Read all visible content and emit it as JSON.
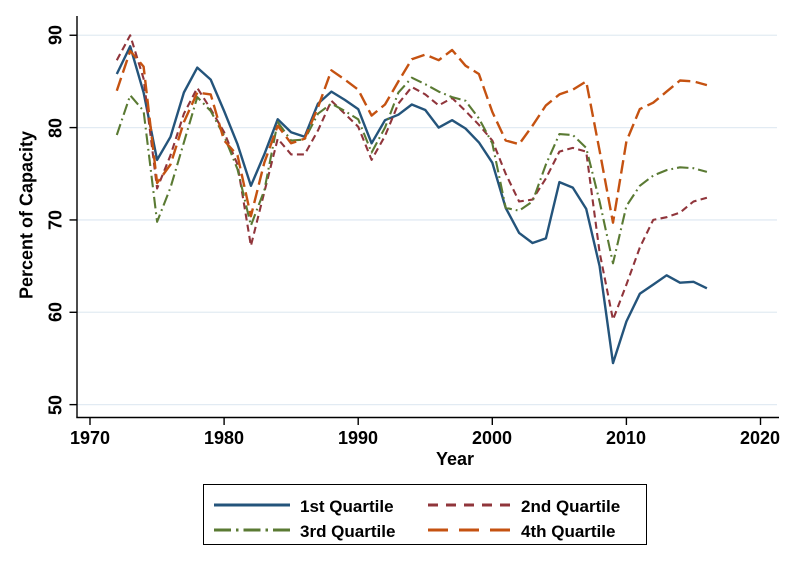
{
  "chart_data": {
    "type": "line",
    "title": "",
    "xlabel": "Year",
    "ylabel": "Percent of Capacity",
    "xticks": [
      "1970",
      "1980",
      "1990",
      "2000",
      "2010",
      "2020"
    ],
    "yticks": [
      "50",
      "60",
      "70",
      "80",
      "90"
    ],
    "xlim": [
      1969,
      2021.4
    ],
    "ylim": [
      48,
      92
    ],
    "grid": "horizontal",
    "grid_color": "#e2ebf3",
    "axis_color": "#000000",
    "legend_position": "bottom-center",
    "years": [
      1972,
      1973,
      1974,
      1975,
      1976,
      1977,
      1978,
      1979,
      1980,
      1981,
      1982,
      1983,
      1984,
      1985,
      1986,
      1987,
      1988,
      1989,
      1990,
      1991,
      1992,
      1993,
      1994,
      1995,
      1996,
      1997,
      1998,
      1999,
      2000,
      2001,
      2002,
      2003,
      2004,
      2005,
      2006,
      2007,
      2008,
      2009,
      2010,
      2011,
      2012,
      2013,
      2014,
      2015,
      2016
    ],
    "series": [
      {
        "name": "1st Quartile",
        "color": "#24547b",
        "pattern": "solid",
        "values": [
          85.8,
          88.8,
          83.8,
          76.5,
          79.0,
          83.8,
          86.5,
          85.2,
          81.8,
          78.2,
          73.7,
          77.1,
          80.9,
          79.5,
          79.0,
          82.6,
          83.9,
          83.0,
          82.0,
          78.3,
          80.8,
          81.4,
          82.5,
          81.9,
          80.0,
          80.8,
          79.9,
          78.4,
          76.2,
          71.3,
          68.6,
          67.5,
          68.0,
          74.1,
          73.5,
          71.2,
          65.0,
          54.5,
          59.0,
          62.0,
          63.0,
          64.0,
          63.2,
          63.3,
          62.6
        ]
      },
      {
        "name": "2nd Quartile",
        "color": "#90353b",
        "pattern": "dash",
        "values": [
          87.3,
          90.0,
          85.3,
          73.4,
          77.0,
          81.5,
          84.3,
          82.0,
          79.5,
          76.0,
          67.2,
          73.0,
          78.8,
          77.1,
          77.1,
          79.7,
          82.9,
          81.5,
          80.1,
          76.5,
          79.1,
          82.6,
          84.4,
          83.6,
          82.4,
          83.2,
          81.8,
          80.3,
          78.6,
          75.0,
          72.0,
          72.2,
          74.5,
          77.4,
          77.8,
          77.4,
          66.5,
          59.2,
          63.0,
          67.0,
          70.0,
          70.3,
          70.8,
          72.0,
          72.4
        ]
      },
      {
        "name": "3rd Quartile",
        "color": "#5a7a33",
        "pattern": "dash-dot",
        "values": [
          79.2,
          83.5,
          81.8,
          69.8,
          73.5,
          78.4,
          83.3,
          81.8,
          79.1,
          75.5,
          69.4,
          73.2,
          80.6,
          78.6,
          78.7,
          81.5,
          82.6,
          81.8,
          80.9,
          77.3,
          80.0,
          83.8,
          85.4,
          84.7,
          83.9,
          83.3,
          82.9,
          81.0,
          78.3,
          71.3,
          71.0,
          72.0,
          76.0,
          79.3,
          79.2,
          77.8,
          72.0,
          65.3,
          71.5,
          73.7,
          74.8,
          75.4,
          75.7,
          75.6,
          75.2
        ]
      },
      {
        "name": "4th Quartile",
        "color": "#c55211",
        "pattern": "long-dash",
        "values": [
          84.0,
          88.3,
          86.6,
          74.0,
          76.0,
          80.6,
          83.8,
          83.6,
          78.6,
          77.0,
          70.4,
          76.2,
          80.2,
          78.3,
          78.8,
          82.2,
          86.2,
          85.2,
          84.1,
          81.3,
          82.5,
          85.0,
          87.4,
          87.9,
          87.3,
          88.4,
          86.7,
          85.8,
          81.7,
          78.6,
          78.2,
          80.2,
          82.4,
          83.6,
          84.1,
          85.0,
          77.5,
          69.7,
          78.5,
          82.0,
          82.7,
          83.9,
          85.1,
          85.0,
          84.6
        ]
      }
    ]
  }
}
